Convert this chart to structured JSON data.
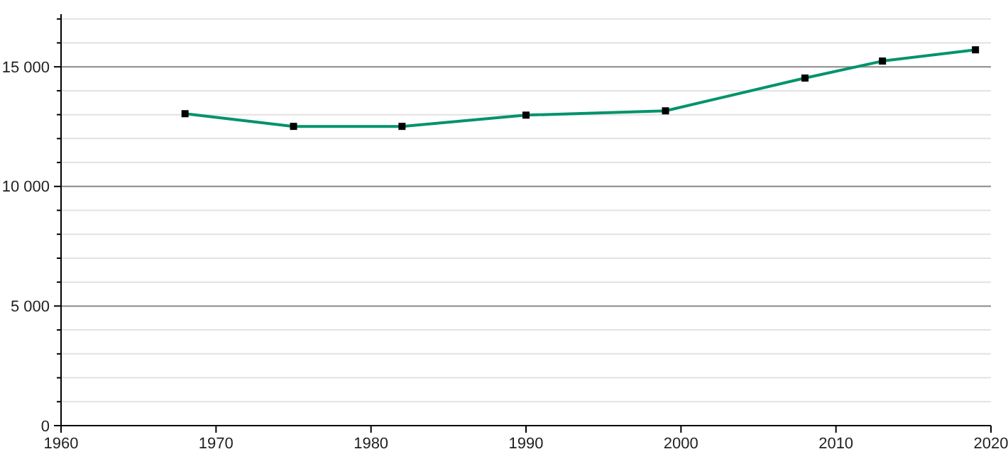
{
  "chart_data": {
    "type": "line",
    "x": [
      1968,
      1975,
      1982,
      1990,
      1999,
      2008,
      2013,
      2019
    ],
    "series": [
      {
        "color": "#00936b",
        "values": [
          13040,
          12510,
          12510,
          12980,
          13160,
          14530,
          15240,
          15710
        ]
      }
    ],
    "xlim": [
      1960,
      2020
    ],
    "xticks": [
      1960,
      1970,
      1980,
      1990,
      2000,
      2010,
      2020
    ],
    "ylim": [
      0,
      17200
    ],
    "yticks": [
      {
        "value": 0,
        "label": "0"
      },
      {
        "value": 1000,
        "label": null
      },
      {
        "value": 2000,
        "label": null
      },
      {
        "value": 3000,
        "label": null
      },
      {
        "value": 4000,
        "label": null
      },
      {
        "value": 5000,
        "label": "5 000"
      },
      {
        "value": 6000,
        "label": null
      },
      {
        "value": 7000,
        "label": null
      },
      {
        "value": 8000,
        "label": null
      },
      {
        "value": 9000,
        "label": null
      },
      {
        "value": 10000,
        "label": "10 000"
      },
      {
        "value": 11000,
        "label": null
      },
      {
        "value": 12000,
        "label": null
      },
      {
        "value": 13000,
        "label": null
      },
      {
        "value": 14000,
        "label": null
      },
      {
        "value": 15000,
        "label": "15 000"
      },
      {
        "value": 16000,
        "label": null
      },
      {
        "value": 17000,
        "label": null
      }
    ],
    "grid": "y",
    "marker": "square",
    "line_style": "solid"
  }
}
